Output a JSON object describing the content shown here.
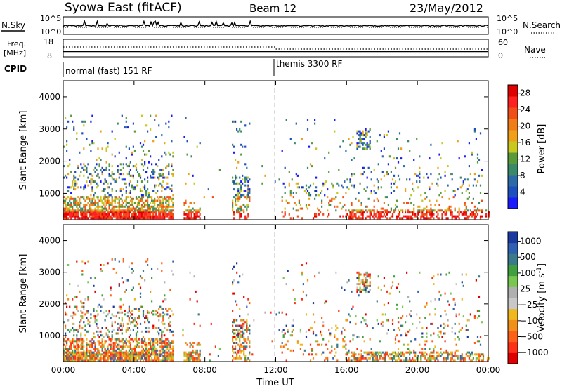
{
  "header": {
    "station": "Syowa East (fitACF)",
    "beam": "Beam 12",
    "date": "23/May/2012"
  },
  "strip_labels": {
    "nsky": "N.Sky",
    "nsky_top": "10^5",
    "nsky_bottom": "10^0",
    "nsearch": "N.Search",
    "nsearch_top": "10^5",
    "nsearch_bottom": "10^0",
    "freq_line1": "Freq.",
    "freq_line2": "[MHz]",
    "freq_top": "18",
    "freq_bottom": "8",
    "nave": "Nave",
    "nave_top": "60",
    "nave_bottom": "0",
    "cpid": "CPID",
    "cpid_mode1": "normal (fast) 151 RF",
    "cpid_mode2": "themis 3300 RF"
  },
  "colors": {
    "power_scale": [
      "#1a1aff",
      "#1e4fc0",
      "#2d6aa8",
      "#3a8a6a",
      "#5a9a3a",
      "#c8c81e",
      "#f0a018",
      "#f07d18",
      "#f05018",
      "#ff2020",
      "#e00000"
    ],
    "velocity_scale": [
      "#e00000",
      "#ff3018",
      "#ff6018",
      "#f09018",
      "#f0b820",
      "#c8c8c8",
      "#b0b0b0",
      "#78c850",
      "#40a040",
      "#3a7a8a",
      "#3060b0",
      "#1a3aa0"
    ]
  },
  "chart_data": [
    {
      "type": "heatmap",
      "parameter": "power",
      "ylabel": "Slant Range [km]",
      "xlabel": "Time UT",
      "x_ticks": [
        "00:00",
        "04:00",
        "08:00",
        "12:00",
        "16:00",
        "20:00",
        "00:00"
      ],
      "x_range_hours": [
        0,
        24
      ],
      "y_ticks": [
        1000,
        2000,
        3000,
        4000
      ],
      "y_range_km": [
        180,
        4500
      ],
      "colorbar_label": "Power [dB]",
      "colorbar_ticks": [
        "4",
        "8",
        "12",
        "16",
        "20",
        "24",
        "28"
      ],
      "colorbar_range": [
        0,
        30
      ],
      "mode_change_hour": 12
    },
    {
      "type": "heatmap",
      "parameter": "velocity",
      "ylabel": "Slant Range [km]",
      "xlabel": "Time UT",
      "x_ticks": [
        "00:00",
        "04:00",
        "08:00",
        "12:00",
        "16:00",
        "20:00",
        "00:00"
      ],
      "x_range_hours": [
        0,
        24
      ],
      "y_ticks": [
        1000,
        2000,
        3000,
        4000
      ],
      "y_range_km": [
        180,
        4500
      ],
      "colorbar_label": "Velocity [m s^-1]",
      "colorbar_ticks": [
        "1000",
        "500",
        "100",
        "25",
        "−25",
        "−100",
        "−500",
        "−1000"
      ],
      "mode_change_hour": 12
    }
  ]
}
